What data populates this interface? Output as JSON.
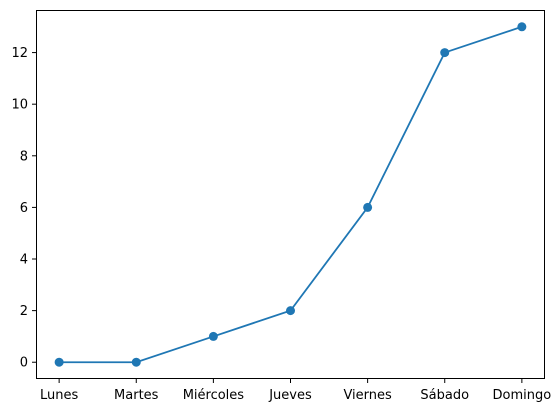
{
  "chart_data": {
    "type": "line",
    "title": "",
    "xlabel": "",
    "ylabel": "",
    "categories": [
      "Lunes",
      "Martes",
      "Miércoles",
      "Jueves",
      "Viernes",
      "Sábado",
      "Domingo"
    ],
    "series": [
      {
        "values": [
          0,
          0,
          1,
          2,
          6,
          12,
          13
        ],
        "color": "#1f77b4",
        "marker": "circle"
      }
    ],
    "yticks": [
      0,
      2,
      4,
      6,
      8,
      10,
      12
    ],
    "ylim": [
      -0.65,
      13.65
    ],
    "grid": false,
    "legend": "none"
  }
}
